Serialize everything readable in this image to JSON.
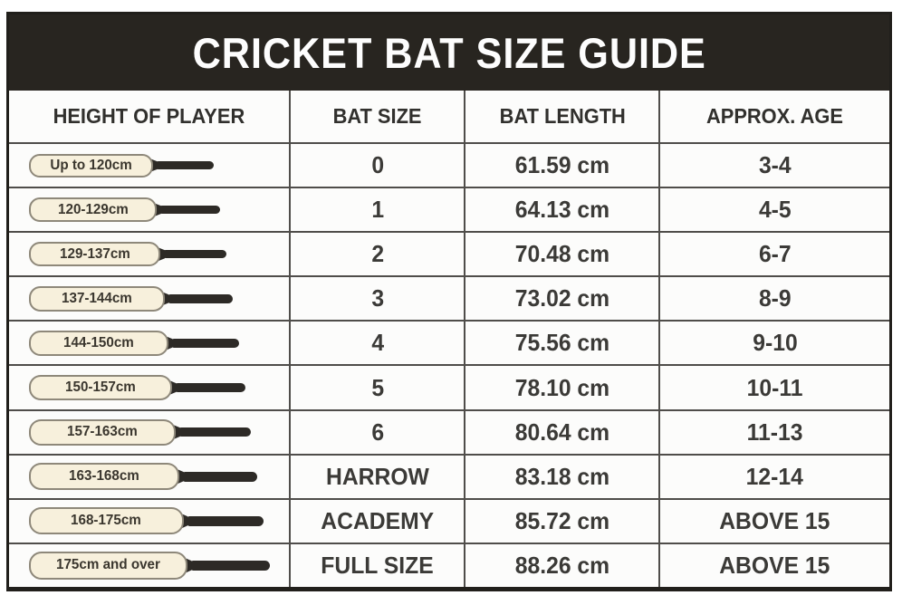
{
  "title": "CRICKET BAT SIZE GUIDE",
  "columns": [
    "HEIGHT OF PLAYER",
    "BAT SIZE",
    "BAT LENGTH",
    "APPROX. AGE"
  ],
  "rows": [
    {
      "height": "Up to 120cm",
      "bat_size": "0",
      "bat_length": "61.59 cm",
      "approx_age": "3-4"
    },
    {
      "height": "120-129cm",
      "bat_size": "1",
      "bat_length": "64.13 cm",
      "approx_age": "4-5"
    },
    {
      "height": "129-137cm",
      "bat_size": "2",
      "bat_length": "70.48 cm",
      "approx_age": "6-7"
    },
    {
      "height": "137-144cm",
      "bat_size": "3",
      "bat_length": "73.02 cm",
      "approx_age": "8-9"
    },
    {
      "height": "144-150cm",
      "bat_size": "4",
      "bat_length": "75.56 cm",
      "approx_age": "9-10"
    },
    {
      "height": "150-157cm",
      "bat_size": "5",
      "bat_length": "78.10 cm",
      "approx_age": "10-11"
    },
    {
      "height": "157-163cm",
      "bat_size": "6",
      "bat_length": "80.64 cm",
      "approx_age": "11-13"
    },
    {
      "height": "163-168cm",
      "bat_size": "HARROW",
      "bat_length": "83.18 cm",
      "approx_age": "12-14"
    },
    {
      "height": "168-175cm",
      "bat_size": "ACADEMY",
      "bat_length": "85.72 cm",
      "approx_age": "ABOVE 15"
    },
    {
      "height": "175cm and over",
      "bat_size": "FULL SIZE",
      "bat_length": "88.26 cm",
      "approx_age": "ABOVE 15"
    }
  ],
  "colors": {
    "header_bg": "#282520",
    "title_text": "#fdfdfd",
    "grid_line": "#4f4d4a",
    "outer_border": "#211f1b",
    "blade_fill": "#f7f0dc",
    "blade_border": "#8e887a",
    "handle": "#2d2a26",
    "cell_text": "#3b3a37",
    "background": "#ffffff"
  }
}
